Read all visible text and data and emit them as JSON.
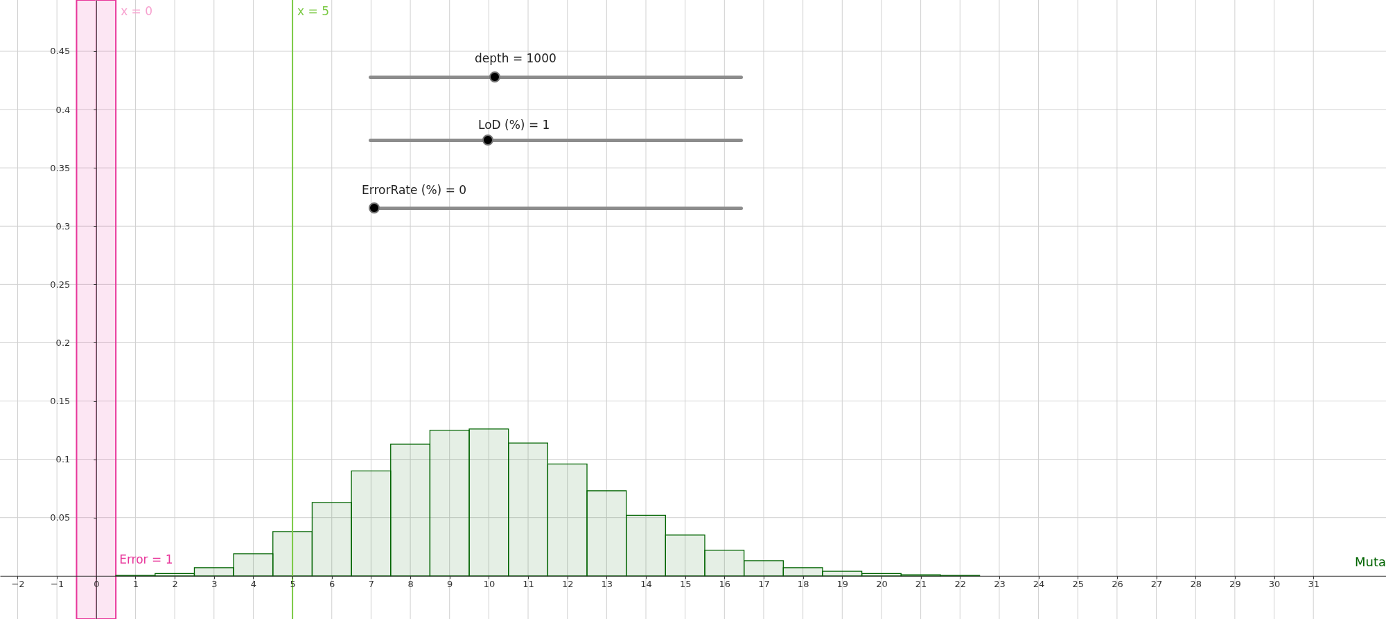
{
  "chart_data": {
    "type": "histogram",
    "xlabel": "Muta",
    "bins": [
      0.5,
      1.5,
      2.5,
      3.5,
      4.5,
      5.5,
      6.5,
      7.5,
      8.5,
      9.5,
      10.5,
      11.5,
      12.5,
      13.5,
      14.5,
      15.5,
      16.5,
      17.5,
      18.5,
      19.5,
      20.5,
      21.5,
      22.5
    ],
    "values": [
      0.0004,
      0.002,
      0.007,
      0.019,
      0.038,
      0.063,
      0.09,
      0.113,
      0.125,
      0.126,
      0.114,
      0.096,
      0.073,
      0.052,
      0.035,
      0.022,
      0.013,
      0.007,
      0.004,
      0.002,
      0.001,
      0.0004
    ],
    "color": "#006400",
    "xlim": [
      -2.45,
      32.85
    ],
    "ylim": [
      -0.037,
      0.494
    ],
    "xticks": [
      {
        "value": -2,
        "label": "−2"
      },
      {
        "value": -1,
        "label": "−1"
      },
      0,
      1,
      2,
      3,
      4,
      5,
      6,
      7,
      8,
      9,
      10,
      11,
      12,
      13,
      14,
      15,
      16,
      17,
      18,
      19,
      20,
      21,
      22,
      23,
      24,
      25,
      26,
      27,
      28,
      29,
      30,
      31
    ],
    "yticks": [
      0.05,
      0.1,
      0.15,
      0.2,
      0.25,
      0.3,
      0.35,
      0.4,
      0.45
    ],
    "grid": true,
    "ref_lines": [
      {
        "axis": "x",
        "value": 0,
        "label": "x = 0",
        "color": "#f7a1cf"
      },
      {
        "axis": "x",
        "value": 5,
        "label": "x = 5",
        "color": "#7ac943"
      }
    ],
    "bands": [
      {
        "axis": "x",
        "from": -0.5,
        "to": 0.5,
        "label": "Error = 1",
        "color": "#e8359a"
      }
    ],
    "annotations": [
      "depth = 1000",
      "LoD (%) = 1",
      "ErrorRate (%) = 0"
    ]
  }
}
